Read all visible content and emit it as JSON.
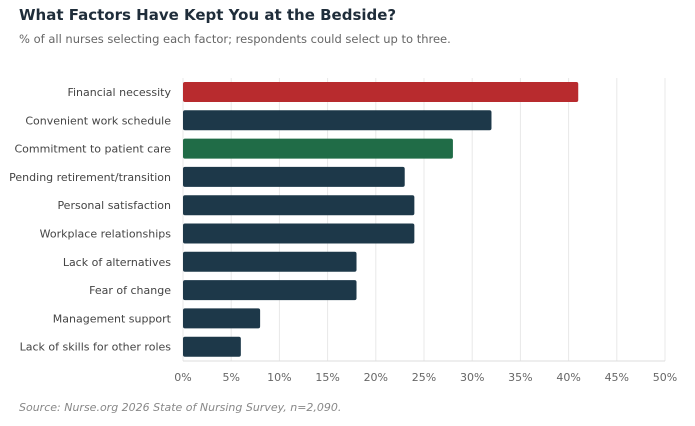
{
  "chart_data": {
    "type": "bar",
    "orientation": "horizontal",
    "title": "What Factors Have Kept You at the Bedside?",
    "subtitle": "% of all nurses selecting each factor; respondents could select up to three.",
    "source": "Source: Nurse.org 2026 State of Nursing Survey, n=2,090.",
    "categories": [
      "Financial necessity",
      "Convenient work schedule",
      "Commitment to patient care",
      "Pending retirement/transition",
      "Personal satisfaction",
      "Workplace relationships",
      "Lack of alternatives",
      "Fear of change",
      "Management support",
      "Lack of skills for other roles"
    ],
    "values": [
      41,
      32,
      28,
      23,
      24,
      24,
      18,
      18,
      8,
      6
    ],
    "colors": [
      "#b82b2e",
      "#1d3849",
      "#206c47",
      "#1d3849",
      "#1d3849",
      "#1d3849",
      "#1d3849",
      "#1d3849",
      "#1d3849",
      "#1d3849"
    ],
    "xlim": [
      0,
      50
    ],
    "xticks": [
      0,
      5,
      10,
      15,
      20,
      25,
      30,
      35,
      40,
      45,
      50
    ],
    "xtick_labels": [
      "0%",
      "5%",
      "10%",
      "15%",
      "20%",
      "25%",
      "30%",
      "35%",
      "40%",
      "45%",
      "50%"
    ],
    "grid": "vertical",
    "xlabel": "",
    "ylabel": ""
  }
}
